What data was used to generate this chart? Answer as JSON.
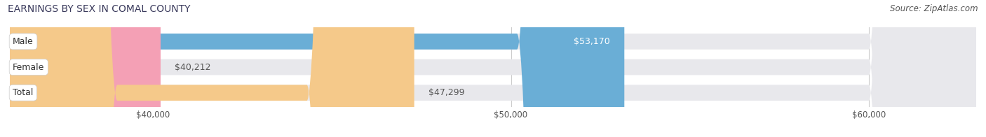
{
  "title": "EARNINGS BY SEX IN COMAL COUNTY",
  "source": "Source: ZipAtlas.com",
  "categories": [
    "Male",
    "Female",
    "Total"
  ],
  "values": [
    53170,
    40212,
    47299
  ],
  "colors": [
    "#6aaed6",
    "#f4a0b5",
    "#f5c98a"
  ],
  "value_label_colors": [
    "white",
    "#555555",
    "#555555"
  ],
  "xlim_min": 36000,
  "xlim_max": 63000,
  "xticks": [
    40000,
    50000,
    60000
  ],
  "xtick_labels": [
    "$40,000",
    "$50,000",
    "$60,000"
  ],
  "bar_height": 0.62,
  "figsize": [
    14.06,
    1.96
  ],
  "dpi": 100,
  "background_color": "#ffffff",
  "bar_background_color": "#e8e8ec"
}
